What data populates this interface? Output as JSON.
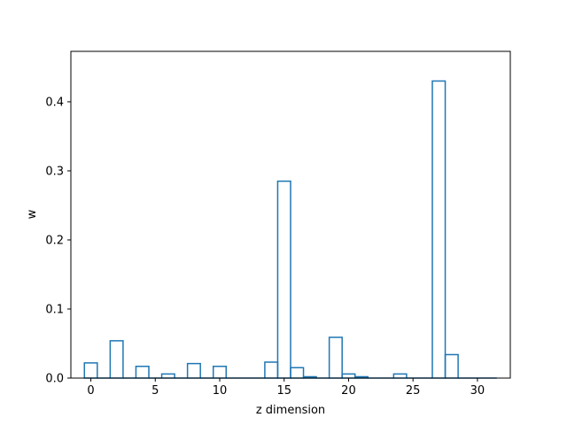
{
  "chart_data": {
    "type": "bar",
    "style": "step-histogram",
    "title": "",
    "xlabel": "z dimension",
    "ylabel": "w",
    "xlim": [
      -1.55,
      32.55
    ],
    "ylim": [
      0,
      0.473
    ],
    "x_ticks": [
      0,
      5,
      10,
      15,
      20,
      25,
      30
    ],
    "y_ticks": [
      0.0,
      0.1,
      0.2,
      0.3,
      0.4
    ],
    "y_tick_labels": [
      "0.0",
      "0.1",
      "0.2",
      "0.3",
      "0.4"
    ],
    "grid": false,
    "legend": "none",
    "line_color": "#1f77b4",
    "categories": [
      0,
      1,
      2,
      3,
      4,
      5,
      6,
      7,
      8,
      9,
      10,
      11,
      12,
      13,
      14,
      15,
      16,
      17,
      18,
      19,
      20,
      21,
      22,
      23,
      24,
      25,
      26,
      27,
      28,
      29,
      30,
      31
    ],
    "values": [
      0.022,
      0.0,
      0.054,
      0.0,
      0.017,
      0.0,
      0.006,
      0.0,
      0.021,
      0.0,
      0.017,
      0.0,
      0.0,
      0.0,
      0.023,
      0.285,
      0.015,
      0.002,
      0.0,
      0.059,
      0.006,
      0.002,
      0.0,
      0.0,
      0.006,
      0.0,
      0.0,
      0.43,
      0.034,
      0.0,
      0.0,
      0.0
    ]
  }
}
